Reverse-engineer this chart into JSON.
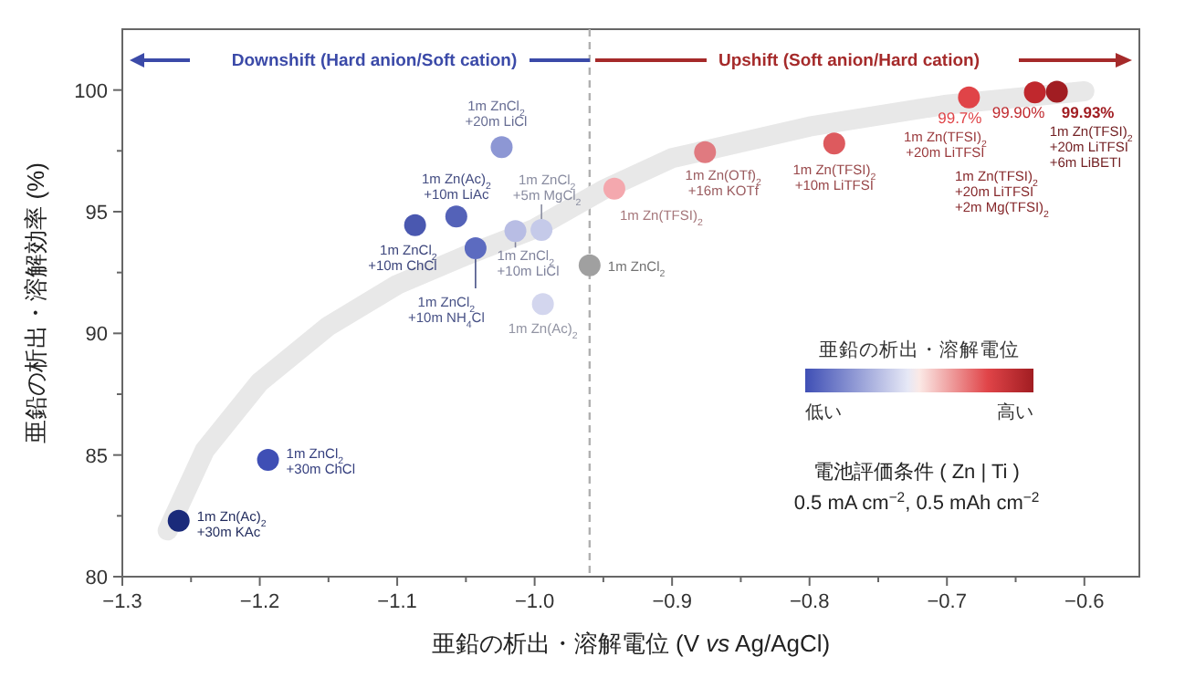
{
  "chart_data": {
    "type": "scatter",
    "xlabel": "亜鉛の析出・溶解電位 (V *vs* Ag/AgCl)",
    "ylabel": "亜鉛の析出・溶解効率 (%)",
    "clabel": "亜鉛の析出・溶解電位",
    "xlim": [
      -1.3,
      -0.56
    ],
    "xticks": [
      {
        "value": -1.3,
        "label": "−1.3"
      },
      {
        "value": -1.2,
        "label": "−1.2"
      },
      {
        "value": -1.1,
        "label": "−1.1"
      },
      {
        "value": -1.0,
        "label": "−1.0"
      },
      {
        "value": -0.9,
        "label": "−0.9"
      },
      {
        "value": -0.8,
        "label": "−0.8"
      },
      {
        "value": -0.7,
        "label": "−0.7"
      },
      {
        "value": -0.6,
        "label": "−0.6"
      }
    ],
    "ylim": [
      80,
      102.5
    ],
    "yticks": [
      80,
      85,
      90,
      95,
      100
    ],
    "series": [
      {
        "type": "line",
        "color": "#e8e8e8",
        "x": [
          -1.267,
          -1.24,
          -1.2,
          -1.15,
          -1.1,
          -1.05,
          -1.0,
          -0.95,
          -0.9,
          -0.8,
          -0.7,
          -0.6
        ],
        "values": [
          81.9,
          85.2,
          88.0,
          90.3,
          92.0,
          93.2,
          94.3,
          95.9,
          97.2,
          98.5,
          99.4,
          99.95
        ]
      },
      {
        "type": "scatter",
        "marker": "circle",
        "x": [
          -1.259,
          -1.194,
          -1.087,
          -1.057,
          -1.043,
          -1.024,
          -1.014,
          -0.995,
          -0.994,
          -0.96,
          -0.942,
          -0.876,
          -0.782,
          -0.684,
          -0.636,
          -0.62
        ],
        "values": [
          82.3,
          84.8,
          94.45,
          94.8,
          93.5,
          97.65,
          94.2,
          94.25,
          91.2,
          92.8,
          95.95,
          97.45,
          97.8,
          99.7,
          99.9,
          99.93
        ],
        "colors": [
          "#1a2a7a",
          "#3f4fb5",
          "#4a58b0",
          "#5462b8",
          "#5c6bc0",
          "#8d97d4",
          "#b8bde4",
          "#c5cae9",
          "#d3d6ee",
          "#a0a0a0",
          "#f4a8ae",
          "#e07a80",
          "#dd5a5e",
          "#e04448",
          "#c0282d",
          "#a11d22"
        ],
        "value_labels": [
          null,
          null,
          null,
          null,
          null,
          null,
          null,
          null,
          null,
          null,
          null,
          null,
          null,
          "99.7%",
          "99.90%",
          "**99.93%**"
        ]
      }
    ],
    "ref_lines": [
      {
        "axis": "x",
        "value": -0.96,
        "color": "#b0b0b0",
        "line_style": "dashed"
      }
    ],
    "annotations": [
      {
        "text": "1m Zn(Ac)$_{2}$\n+30m KAc",
        "x": -1.259,
        "y": 82.3
      },
      {
        "text": "1m ZnCl$_{2}$\n+30m ChCl",
        "x": -1.194,
        "y": 84.8
      },
      {
        "text": "1m ZnCl$_{2}$\n+10m ChCl",
        "x": -1.087,
        "y": 94.45
      },
      {
        "text": "1m Zn(Ac)$_{2}$\n+10m LiAc",
        "x": -1.057,
        "y": 94.8
      },
      {
        "text": "1m ZnCl$_{2}$\n+10m NH$_{4}$Cl",
        "x": -1.043,
        "y": 93.5
      },
      {
        "text": "1m ZnCl$_{2}$\n+20m LiCl",
        "x": -1.024,
        "y": 97.65
      },
      {
        "text": "1m ZnCl$_{2}$\n+10m LiCl",
        "x": -1.014,
        "y": 94.2
      },
      {
        "text": "1m ZnCl$_{2}$\n+5m MgCl$_{2}$",
        "x": -0.995,
        "y": 94.25
      },
      {
        "text": "1m Zn(Ac)$_{2}$",
        "x": -0.994,
        "y": 91.2
      },
      {
        "text": "1m ZnCl$_{2}$",
        "x": -0.96,
        "y": 92.8
      },
      {
        "text": "1m Zn(TFSI)$_{2}$",
        "x": -0.942,
        "y": 95.95
      },
      {
        "text": "1m Zn(OTf)$_{2}$\n+16m KOTf",
        "x": -0.876,
        "y": 97.45
      },
      {
        "text": "1m Zn(TFSI)$_{2}$\n+10m LiTFSI",
        "x": -0.782,
        "y": 97.8
      },
      {
        "text": "1m Zn(TFSI)$_{2}$\n+20m LiTFSI",
        "x": -0.684,
        "y": 99.7
      },
      "1m Zn(TFSI)$_{2}$\n+20m LiTFSI\n+2m Mg(TFSI)$_{2}$",
      {
        "text": "1m Zn(TFSI)$_{2}$\n+20m LiTFSI\n+6m LiBETI",
        "x": -0.62,
        "y": 99.93
      },
      "Downshift (Hard anion/Soft cation)",
      "Upshift (Soft anion/Hard cation)",
      "低い",
      "高い",
      "電池評価条件 ( Zn | Ti )\n0.5 mA cm$^{−2}$, 0.5 mAh cm$^{−2}$"
    ]
  }
}
